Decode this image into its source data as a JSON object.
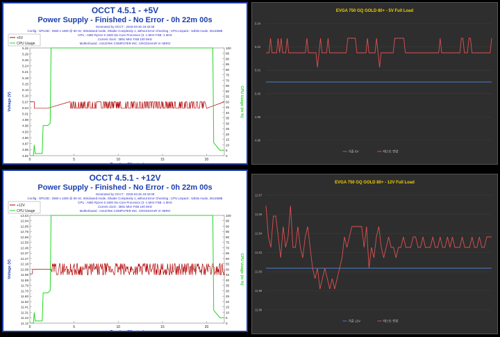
{
  "colors": {
    "occt_title": "#1c3fae",
    "occt_info": "#2a2ad0",
    "occt_volt": "#b00000",
    "occt_cpu": "#21d421",
    "dark_bg": "#2e2e2e",
    "dark_title": "#f0d000",
    "dark_ref": "#4a7fd0",
    "dark_load": "#e05050"
  },
  "chart_data": [
    {
      "type": "line",
      "title": "OCCT 4.5.1 - +5V",
      "subtitle": "Power Supply - Finished - No Error - 0h 22m 00s",
      "info": [
        "Generated by OCCT : 2018-03-26 19:42:08",
        "Config : GPU3D : 2560 x 1600 @ 60 Hz, Windowed mode, Shader Complexity 1, without Error Checking ; CPU:Linpack : 64bits mode, 26145MB",
        "CPU : AMD Ryzen 5 1600 Six-Core Processor (3 -1 MHz FSB -1 MHz",
        "Current clock : 3691 MHz FSB 100 MHz",
        "Motherboard : ASUSTeK COMPUTER INC. CROSSHAIR VI HERO"
      ],
      "legend": [
        "+5V",
        "CPU Usage"
      ],
      "xlabel": "Duration (Minutes)",
      "ylabel": "Voltage (V)",
      "y2label": "CPU Usage (in %)",
      "xticks": [
        "0",
        "5",
        "10",
        "15",
        "20"
      ],
      "yticks": [
        "4.82",
        "4.85",
        "4.87",
        "4.90",
        "4.93",
        "4.96",
        "4.99",
        "5.01",
        "5.04",
        "5.07",
        "5.10",
        "5.13",
        "5.15",
        "5.18",
        "5.21",
        "5.24",
        "5.26",
        "5.29",
        "5.32"
      ],
      "y2ticks": [
        "0",
        "5",
        "10",
        "15",
        "20",
        "25",
        "30",
        "35",
        "40",
        "45",
        "50",
        "55",
        "60",
        "65",
        "70",
        "75",
        "80",
        "85",
        "90",
        "95",
        "100"
      ],
      "xlim": [
        0,
        22
      ],
      "ylim": [
        4.82,
        5.32
      ],
      "y2lim": [
        0,
        100
      ],
      "volt_x": [
        0,
        0.5,
        0.5,
        2,
        2,
        20,
        20,
        22
      ],
      "volt_y": [
        5.07,
        5.07,
        5.04,
        5.04,
        5.04,
        5.04,
        5.04,
        5.07
      ],
      "volt_noise": {
        "from": 4.5,
        "to": 19.8,
        "values": [
          5.04,
          5.07
        ]
      },
      "cpu_x": [
        0,
        0.4,
        0.5,
        0.6,
        1.4,
        1.5,
        2.0,
        2.3,
        2.4,
        20.7,
        20.8,
        21.5,
        22
      ],
      "cpu_y": [
        0,
        0,
        10,
        2,
        2,
        28,
        28,
        30,
        100,
        100,
        12,
        5,
        5
      ]
    },
    {
      "type": "line",
      "title": "EVGA 750 GQ GOLD 80+ - 5V Full Load",
      "yticks": [
        "4.96",
        "4.98",
        "5.00",
        "5.01",
        "5.03",
        "5.04"
      ],
      "legend": [
        "기준 5V",
        "테스트 전압"
      ],
      "ylim": [
        4.96,
        5.04
      ],
      "reference": 5.0,
      "values": [
        5.02,
        5.02,
        5.02,
        5.03,
        5.02,
        5.02,
        5.02,
        5.02,
        5.03,
        5.02,
        5.03,
        5.02,
        5.02,
        5.02,
        5.03,
        5.02,
        5.02,
        5.02,
        5.02,
        5.02,
        5.02,
        5.02,
        5.02,
        5.02,
        5.02,
        5.02,
        5.02,
        5.03,
        5.02,
        5.02,
        5.02,
        5.02,
        5.02,
        5.02,
        5.01,
        5.02,
        5.03,
        5.02,
        5.02,
        5.02,
        5.02,
        5.03,
        5.02,
        5.02,
        5.02,
        5.02,
        5.02,
        5.02,
        5.02,
        5.02,
        5.02,
        5.02,
        5.02,
        5.02,
        5.03,
        5.03,
        5.03,
        5.03,
        5.03,
        5.03,
        5.02,
        5.02,
        5.02,
        5.02,
        5.02,
        5.02,
        5.02,
        5.03,
        5.02,
        5.02,
        5.02,
        5.02,
        5.02,
        5.03,
        5.02,
        5.01,
        5.02,
        5.02,
        5.02,
        5.02,
        5.02,
        5.02,
        5.02,
        5.02,
        5.02,
        5.03,
        5.03,
        5.03,
        5.03,
        5.03,
        5.03,
        5.03,
        5.02,
        5.02,
        5.02,
        5.02,
        5.02,
        5.02,
        5.02,
        5.02,
        5.02,
        5.02,
        5.02,
        5.02,
        5.02,
        5.02,
        5.02,
        5.02,
        5.02,
        5.02,
        5.02,
        5.02,
        5.02,
        5.02,
        5.02,
        5.03,
        5.02,
        5.02,
        5.02,
        5.02,
        5.02,
        5.02,
        5.02,
        5.02,
        5.02,
        5.02,
        5.02,
        5.02,
        5.02,
        5.03,
        5.03,
        5.02,
        5.02,
        5.02,
        5.03,
        5.03,
        5.02,
        5.02,
        5.02,
        5.02,
        5.02,
        5.02,
        5.02,
        5.02,
        5.02,
        5.02,
        5.02,
        5.02,
        5.02,
        5.03
      ]
    },
    {
      "type": "line",
      "title": "OCCT 4.5.1 - +12V",
      "subtitle": "Power Supply - Finished - No Error - 0h 22m 00s",
      "info": [
        "Generated by OCCT : 2018-03-26 19:42:08",
        "Config : GPU3D : 2560 x 1600 @ 60 Hz, Windowed mode, Shader Complexity 1, without Error Checking ; CPU:Linpack : 64bits mode, 26145MB",
        "CPU : AMD Ryzen 5 1600 Six-Core Processor (3 -1 MHz FSB -1 MHz",
        "Current clock : 3691 MHz FSB 100 MHz",
        "Motherboard : ASUSTeK COMPUTER INC. CROSSHAIR VI HERO"
      ],
      "legend": [
        "+12V",
        "CPU Usage"
      ],
      "xlabel": "Duration (Minutes)",
      "ylabel": "Voltage (V)",
      "y2label": "CPU Usage (in %)",
      "xticks": [
        "0",
        "5",
        "10",
        "15",
        "20"
      ],
      "yticks": [
        "11.12",
        "11.22",
        "11.31",
        "11.41",
        "11.50",
        "11.60",
        "11.70",
        "11.79",
        "11.89",
        "11.98",
        "12.08",
        "12.18",
        "12.27",
        "12.37",
        "12.46",
        "12.56",
        "12.66",
        "12.75",
        "12.85",
        "12.94",
        "13.04"
      ],
      "y2ticks": [
        "0",
        "5",
        "10",
        "15",
        "20",
        "25",
        "30",
        "35",
        "40",
        "45",
        "50",
        "55",
        "60",
        "65",
        "70",
        "75",
        "80",
        "85",
        "90",
        "95",
        "100"
      ],
      "xlim": [
        0,
        22
      ],
      "ylim": [
        11.12,
        13.04
      ],
      "y2lim": [
        0,
        100
      ],
      "volt_x": [
        0,
        0.3,
        0.3,
        2.4,
        22
      ],
      "volt_y": [
        12.0,
        12.0,
        12.08,
        12.08,
        12.08
      ],
      "volt_noise": {
        "from": 2.5,
        "to": 22,
        "values": [
          11.98,
          12.03,
          12.08,
          12.13,
          12.18
        ]
      },
      "cpu_x": [
        0,
        0.4,
        0.5,
        0.6,
        1.4,
        1.5,
        2.0,
        2.3,
        2.4,
        20.7,
        20.8,
        21.5,
        22
      ],
      "cpu_y": [
        0,
        0,
        10,
        2,
        2,
        28,
        28,
        30,
        100,
        100,
        12,
        5,
        5
      ]
    },
    {
      "type": "line",
      "title": "EVGA 750 GQ GOLD 80+ - 12V Full Load",
      "yticks": [
        "11.96",
        "11.98",
        "12.00",
        "12.02",
        "12.04",
        "12.06",
        "12.07"
      ],
      "legend": [
        "기준 12V",
        "테스트 전압"
      ],
      "ylim": [
        11.96,
        12.07
      ],
      "reference": 12.0,
      "values": [
        12.06,
        12.03,
        12.02,
        12.05,
        12.05,
        12.03,
        12.01,
        12.04,
        12.02,
        12.03,
        12.06,
        12.02,
        12.02,
        12.04,
        12.02,
        12.01,
        12.03,
        12.04,
        12.02,
        12.0,
        11.99,
        12.0,
        11.98,
        11.99,
        12.0,
        11.99,
        11.98,
        11.99,
        11.98,
        11.99,
        12.0,
        12.01,
        12.03,
        12.02,
        12.03,
        12.04,
        12.04,
        12.04,
        12.04,
        12.04,
        12.02,
        12.04,
        12.0,
        12.02,
        12.01,
        12.03,
        12.04,
        12.02,
        12.01,
        12.02,
        12.03,
        12.02,
        12.02,
        12.01,
        12.02,
        12.02,
        12.03,
        12.02,
        12.02,
        12.02,
        12.03,
        12.03,
        12.02,
        12.02,
        12.03,
        12.02,
        12.02,
        12.02,
        12.03,
        12.02,
        12.02,
        12.03,
        12.02,
        12.02,
        12.03,
        12.02,
        12.03,
        12.02,
        12.02,
        12.02,
        12.03,
        12.02,
        12.02,
        12.02,
        12.03,
        12.02,
        12.02,
        12.03,
        12.02,
        12.02,
        12.03,
        12.03,
        12.03
      ]
    }
  ]
}
